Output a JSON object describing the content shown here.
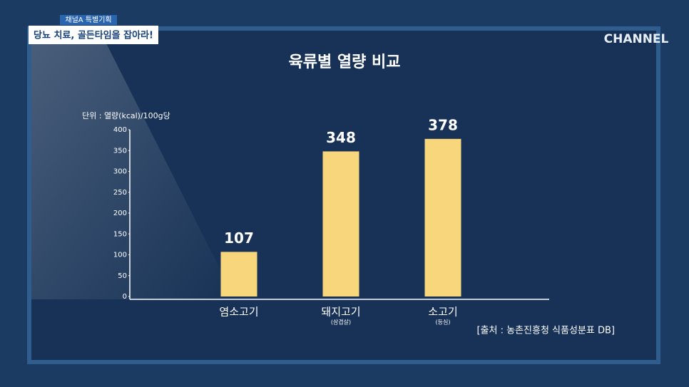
{
  "header": {
    "program": "채널A 특별기획",
    "headline": "당뇨 치료, 골든타임을 잡아라!",
    "logo": "CHANNEL"
  },
  "chart_data": {
    "type": "bar",
    "title": "육류별 열량 비교",
    "y_label": "단위 : 열량(kcal)/100g당",
    "categories": [
      "염소고기",
      "돼지고기",
      "소고기"
    ],
    "category_notes": [
      null,
      "(삼겹살)",
      "(등심)"
    ],
    "values": [
      107,
      348,
      378
    ],
    "color": "#f8d67c",
    "ylim": [
      0,
      400
    ],
    "yticks": [
      0,
      50,
      100,
      150,
      200,
      250,
      300,
      350,
      400
    ],
    "source": "[출처 : 농촌진흥청 식품성분표 DB]"
  }
}
